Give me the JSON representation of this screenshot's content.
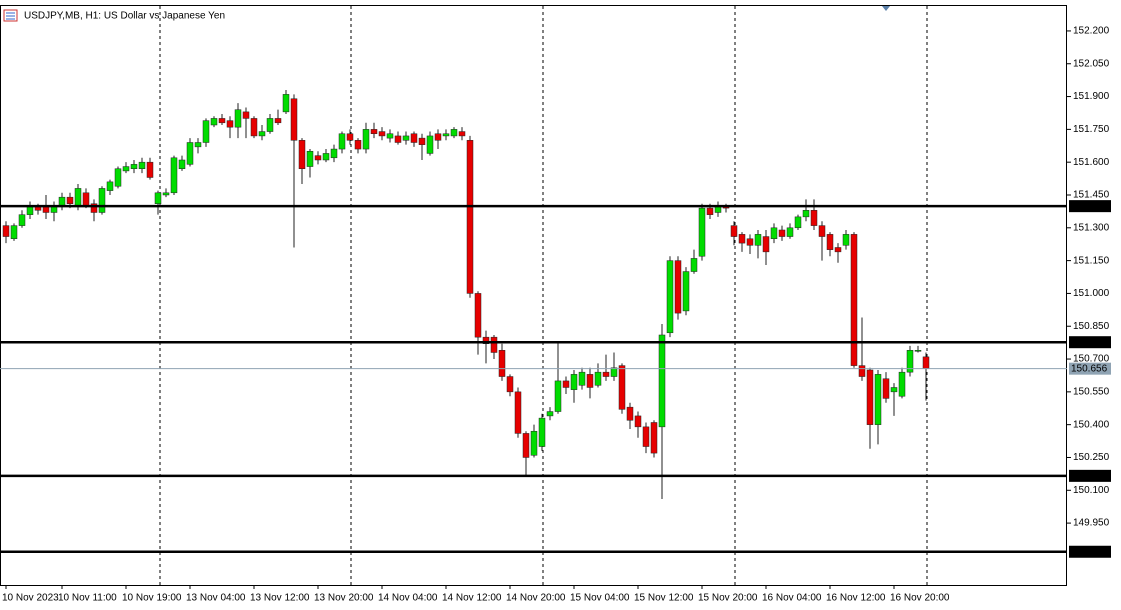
{
  "chart_data": {
    "type": "candlestick",
    "title": "USDJPY,MB, H1:  US Dollar vs Japanese Yen",
    "open": [
      151.31,
      151.25,
      151.31,
      151.36,
      151.4,
      151.4,
      151.37,
      151.4,
      151.44,
      151.4,
      151.46,
      151.41,
      151.37,
      151.47,
      151.49,
      151.56,
      151.57,
      151.57,
      151.6,
      151.41,
      151.45,
      151.46,
      151.57,
      151.59,
      151.67,
      151.69,
      151.77,
      151.8,
      151.79,
      151.76,
      151.83,
      151.8,
      151.72,
      151.74,
      151.8,
      151.83,
      151.89,
      151.7,
      151.58,
      151.63,
      151.61,
      151.62,
      151.66,
      151.73,
      151.7,
      151.66,
      151.75,
      151.74,
      151.71,
      151.72,
      151.7,
      151.73,
      151.71,
      151.64,
      151.73,
      151.72,
      151.72,
      151.74,
      151.7,
      151.0,
      150.8,
      150.8,
      150.74,
      150.62,
      150.55,
      150.36,
      150.26,
      150.3,
      150.44,
      150.46,
      150.6,
      150.56,
      150.58,
      150.63,
      150.58,
      150.64,
      150.62,
      150.67,
      150.48,
      150.44,
      150.39,
      150.41,
      150.39,
      150.82,
      151.15,
      150.92,
      151.1,
      151.17,
      151.39,
      151.37,
      151.4,
      151.31,
      151.27,
      151.25,
      151.22,
      151.26,
      151.25,
      151.29,
      151.26,
      151.3,
      151.35,
      151.38,
      151.31,
      151.27,
      151.21,
      151.22,
      151.27,
      150.67,
      150.65,
      150.4,
      150.61,
      150.55,
      150.53,
      150.64,
      150.74,
      150.71
    ],
    "high": [
      151.33,
      151.32,
      151.38,
      151.42,
      151.41,
      151.45,
      151.42,
      151.46,
      151.46,
      151.5,
      151.48,
      151.43,
      151.49,
      151.52,
      151.58,
      151.6,
      151.61,
      151.62,
      151.62,
      151.47,
      151.48,
      151.63,
      151.63,
      151.71,
      151.71,
      151.8,
      151.81,
      151.82,
      151.81,
      151.87,
      151.85,
      151.81,
      151.77,
      151.82,
      151.84,
      151.93,
      151.91,
      151.71,
      151.66,
      151.65,
      151.66,
      151.68,
      151.74,
      151.75,
      151.71,
      151.78,
      151.78,
      151.76,
      151.75,
      151.74,
      151.74,
      151.74,
      151.73,
      151.74,
      151.75,
      151.75,
      151.76,
      151.76,
      151.72,
      151.01,
      150.83,
      150.81,
      150.77,
      150.63,
      150.57,
      150.37,
      150.4,
      150.45,
      150.48,
      150.78,
      150.62,
      150.65,
      150.66,
      150.66,
      150.68,
      150.72,
      150.73,
      150.68,
      150.5,
      150.46,
      150.41,
      150.42,
      150.86,
      151.17,
      151.17,
      151.12,
      151.2,
      151.41,
      151.41,
      151.42,
      151.41,
      151.33,
      151.28,
      151.27,
      151.29,
      151.29,
      151.32,
      151.31,
      151.32,
      151.36,
      151.43,
      151.43,
      151.33,
      151.28,
      151.23,
      151.29,
      151.28,
      150.89,
      150.66,
      150.65,
      150.64,
      150.59,
      150.66,
      150.76,
      150.76,
      150.73
    ],
    "low": [
      151.23,
      151.24,
      151.3,
      151.34,
      151.36,
      151.34,
      151.33,
      151.38,
      151.39,
      151.38,
      151.39,
      151.33,
      151.36,
      151.45,
      151.48,
      151.55,
      151.55,
      151.55,
      151.52,
      151.36,
      151.44,
      151.45,
      151.56,
      151.58,
      151.64,
      151.67,
      151.76,
      151.77,
      151.71,
      151.71,
      151.71,
      151.71,
      151.7,
      151.73,
      151.77,
      151.82,
      151.21,
      151.5,
      151.53,
      151.59,
      151.6,
      151.6,
      151.64,
      151.68,
      151.64,
      151.64,
      151.71,
      151.7,
      151.69,
      151.68,
      151.68,
      151.67,
      151.61,
      151.63,
      151.66,
      151.7,
      151.71,
      151.7,
      150.98,
      150.72,
      150.68,
      150.7,
      150.6,
      150.53,
      150.34,
      150.17,
      150.25,
      150.28,
      150.42,
      150.45,
      150.54,
      150.5,
      150.56,
      150.52,
      150.57,
      150.6,
      150.6,
      150.45,
      150.38,
      150.34,
      150.27,
      150.25,
      150.06,
      150.8,
      150.88,
      150.9,
      151.09,
      151.15,
      151.34,
      151.35,
      151.37,
      151.22,
      151.19,
      151.18,
      151.16,
      151.13,
      151.23,
      151.24,
      151.25,
      151.29,
      151.33,
      151.29,
      151.15,
      151.17,
      151.14,
      151.2,
      150.66,
      150.6,
      150.29,
      150.31,
      150.5,
      150.44,
      150.52,
      150.62,
      150.73,
      150.51
    ],
    "close": [
      151.26,
      151.31,
      151.36,
      151.4,
      151.38,
      151.37,
      151.4,
      151.44,
      151.41,
      151.48,
      151.4,
      151.37,
      151.48,
      151.51,
      151.57,
      151.58,
      151.59,
      151.6,
      151.53,
      151.46,
      151.46,
      151.62,
      151.61,
      151.69,
      151.69,
      151.79,
      151.8,
      151.78,
      151.76,
      151.84,
      151.8,
      151.72,
      151.74,
      151.8,
      151.78,
      151.91,
      151.7,
      151.57,
      151.65,
      151.61,
      151.64,
      151.66,
      151.73,
      151.7,
      151.66,
      151.75,
      151.73,
      151.72,
      151.73,
      151.69,
      151.72,
      151.69,
      151.68,
      151.72,
      151.7,
      151.73,
      151.75,
      151.72,
      151.0,
      150.8,
      150.77,
      150.73,
      150.62,
      150.55,
      150.36,
      150.25,
      150.37,
      150.43,
      150.46,
      150.6,
      150.57,
      150.63,
      150.64,
      150.57,
      150.64,
      150.62,
      150.66,
      150.47,
      150.42,
      150.39,
      150.3,
      150.27,
      150.81,
      151.15,
      150.91,
      151.1,
      151.16,
      151.39,
      151.36,
      151.4,
      151.39,
      151.26,
      151.23,
      151.22,
      151.27,
      151.19,
      151.3,
      151.26,
      151.3,
      151.35,
      151.38,
      151.31,
      151.26,
      151.2,
      151.19,
      151.27,
      150.67,
      150.62,
      150.4,
      150.63,
      150.52,
      150.57,
      150.64,
      150.74,
      150.74,
      150.656
    ],
    "up_color": "#00dc00",
    "down_color": "#e60000",
    "wick_color": "#222222",
    "xlim": [
      -0.75,
      132.625
    ],
    "xticks": [
      {
        "value": 0,
        "label": "10 Nov 2023"
      },
      {
        "value": 7,
        "label": "10 Nov 11:00"
      },
      {
        "value": 15,
        "label": "10 Nov 19:00"
      },
      {
        "value": 23,
        "label": "13 Nov 04:00"
      },
      {
        "value": 31,
        "label": "13 Nov 12:00"
      },
      {
        "value": 39,
        "label": "13 Nov 20:00"
      },
      {
        "value": 47,
        "label": "14 Nov 04:00"
      },
      {
        "value": 55,
        "label": "14 Nov 12:00"
      },
      {
        "value": 63,
        "label": "14 Nov 20:00"
      },
      {
        "value": 71,
        "label": "15 Nov 04:00"
      },
      {
        "value": 79,
        "label": "15 Nov 12:00"
      },
      {
        "value": 87,
        "label": "15 Nov 20:00"
      },
      {
        "value": 95,
        "label": "16 Nov 04:00"
      },
      {
        "value": 103,
        "label": "16 Nov 12:00"
      },
      {
        "value": 111,
        "label": "16 Nov 20:00"
      }
    ],
    "ylim": [
      149.667,
      152.314
    ],
    "yticks": [
      {
        "value": 152.2,
        "label": "152.200"
      },
      {
        "value": 152.05,
        "label": "152.050"
      },
      {
        "value": 151.9,
        "label": "151.900"
      },
      {
        "value": 151.75,
        "label": "151.750"
      },
      {
        "value": 151.6,
        "label": "151.600"
      },
      {
        "value": 151.45,
        "label": "151.450"
      },
      {
        "value": 151.3,
        "label": "151.300"
      },
      {
        "value": 151.15,
        "label": "151.150"
      },
      {
        "value": 151,
        "label": "151.000"
      },
      {
        "value": 150.85,
        "label": "150.850"
      },
      {
        "value": 150.7,
        "label": "150.700"
      },
      {
        "value": 150.55,
        "label": "150.550"
      },
      {
        "value": 150.4,
        "label": "150.400"
      },
      {
        "value": 150.25,
        "label": "150.250"
      },
      {
        "value": 150.1,
        "label": "150.100"
      },
      {
        "value": 149.95,
        "label": "149.950"
      }
    ],
    "levels": [
      151.399,
      150.777,
      150.166,
      149.819
    ],
    "bid": 150.656
  }
}
